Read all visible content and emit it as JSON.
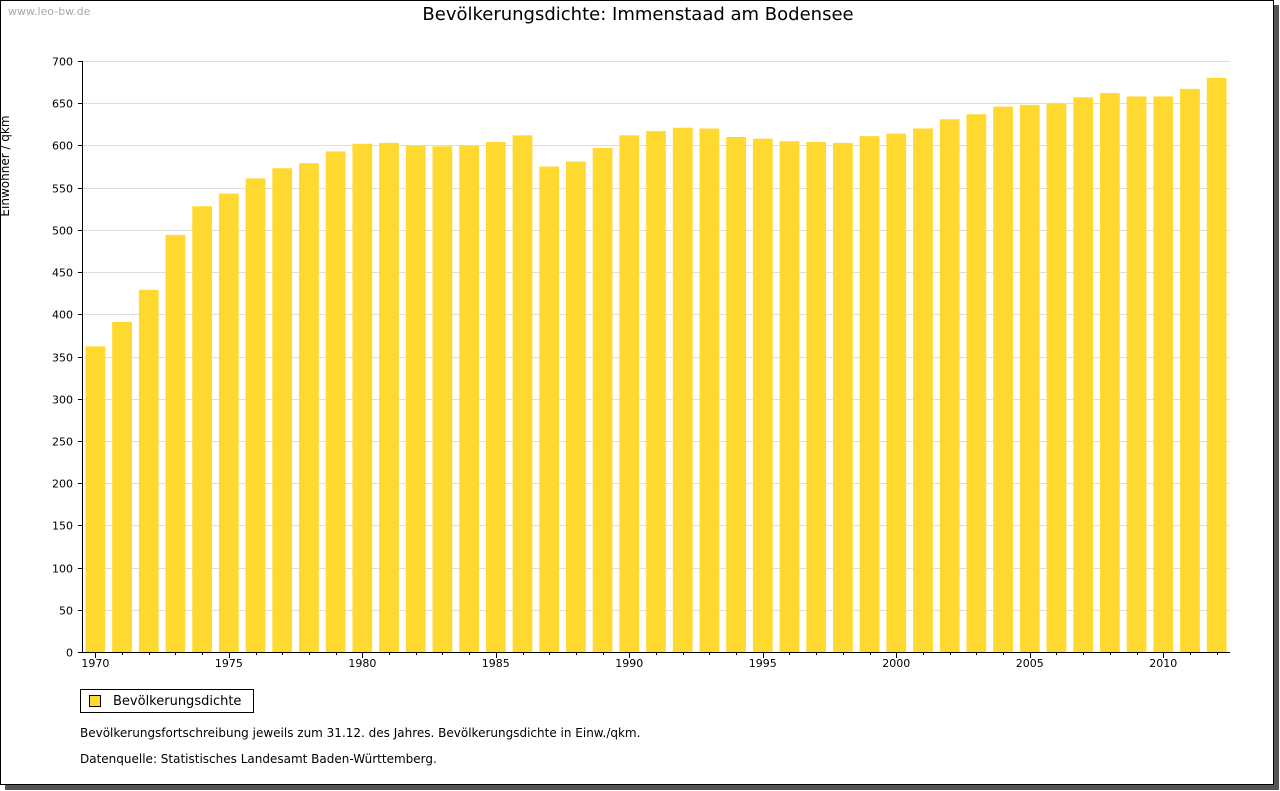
{
  "watermark": "www.leo-bw.de",
  "footnote": "Bevölkerungsfortschreibung jeweils zum 31.12. des Jahres. Bevölkerungsdichte in Einw./qkm.",
  "source": "Datenquelle: Statistisches Landesamt Baden-Württemberg.",
  "colors": {
    "bar": "#FFD930",
    "grid": "#dddddd",
    "axis": "#000000"
  },
  "chart_data": {
    "type": "bar",
    "title": "Bevölkerungsdichte: Immenstaad am Bodensee",
    "ylabel": "Einwohner / qkm",
    "xlabel": "",
    "ylim": [
      0,
      700
    ],
    "yticks": [
      0,
      50,
      100,
      150,
      200,
      250,
      300,
      350,
      400,
      450,
      500,
      550,
      600,
      650,
      700
    ],
    "xtick_labels": [
      "1970",
      "1975",
      "1980",
      "1985",
      "1990",
      "1995",
      "2000",
      "2005",
      "2010"
    ],
    "grid": true,
    "legend_position": "bottom-left",
    "categories": [
      1970,
      1971,
      1972,
      1973,
      1974,
      1975,
      1976,
      1977,
      1978,
      1979,
      1980,
      1981,
      1982,
      1983,
      1984,
      1985,
      1986,
      1987,
      1988,
      1989,
      1990,
      1991,
      1992,
      1993,
      1994,
      1995,
      1996,
      1997,
      1998,
      1999,
      2000,
      2001,
      2002,
      2003,
      2004,
      2005,
      2006,
      2007,
      2008,
      2009,
      2010,
      2011,
      2012
    ],
    "series": [
      {
        "name": "Bevölkerungsdichte",
        "values": [
          362,
          391,
          429,
          494,
          528,
          543,
          561,
          573,
          579,
          593,
          602,
          603,
          600,
          599,
          600,
          604,
          612,
          575,
          581,
          597,
          612,
          617,
          621,
          620,
          610,
          608,
          605,
          604,
          603,
          611,
          614,
          620,
          631,
          637,
          646,
          648,
          650,
          657,
          662,
          658,
          658,
          667,
          680
        ]
      }
    ]
  }
}
